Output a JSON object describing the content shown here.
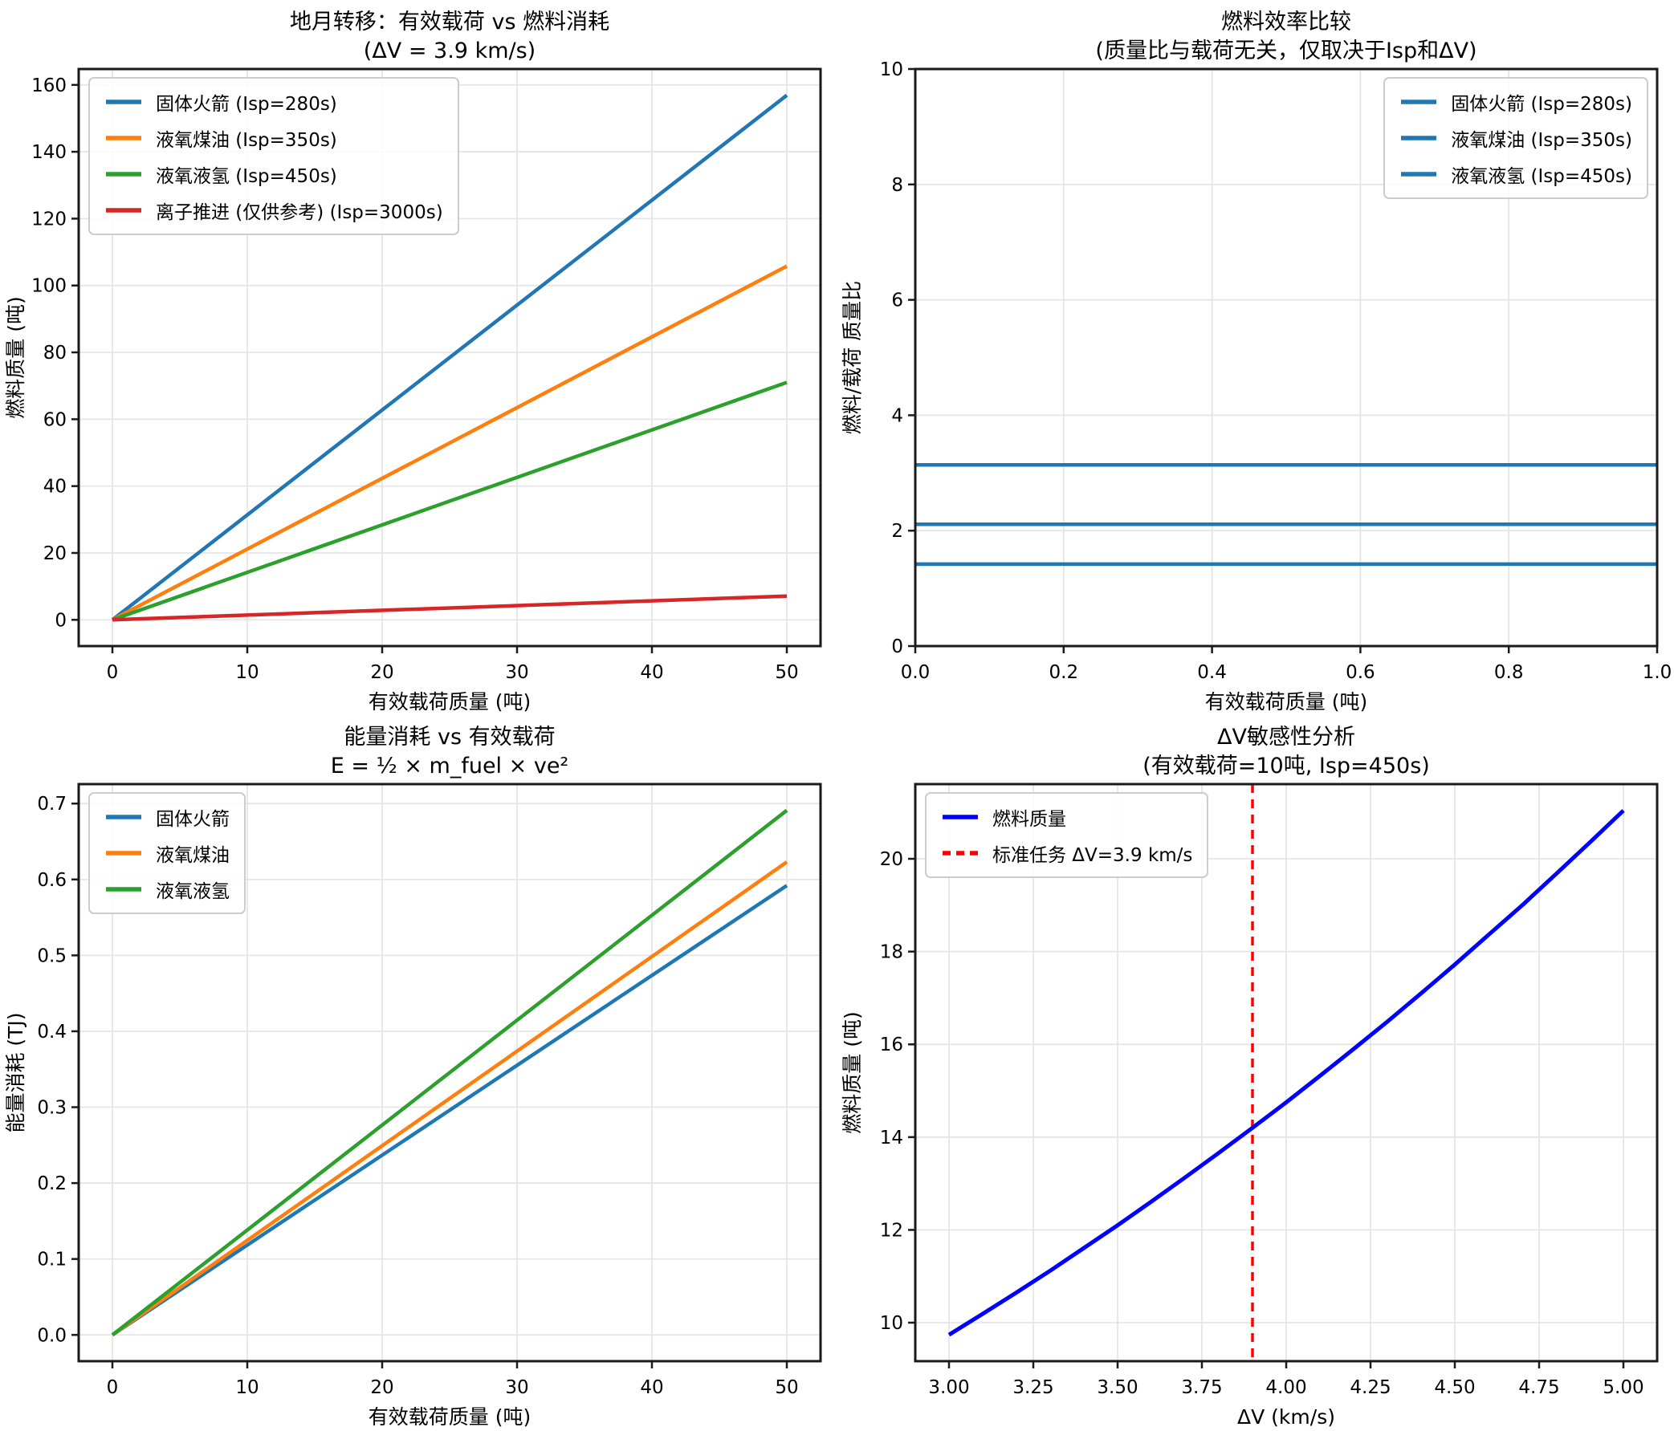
{
  "figure": {
    "background": "#ffffff",
    "grid_color": "#e4e4e4",
    "spine_color": "#1a1a1a",
    "tick_color": "#1a1a1a"
  },
  "chart_data": [
    {
      "id": "payload-vs-fuel",
      "type": "line",
      "title": "地月转移：有效载荷 vs 燃料消耗",
      "subtitle": "(ΔV = 3.9 km/s)",
      "xlabel": "有效载荷质量 (吨)",
      "ylabel": "燃料质量 (吨)",
      "xlim": [
        -2.5,
        52.5
      ],
      "ylim": [
        -7.85,
        164.75
      ],
      "xticks": [
        0,
        10,
        20,
        30,
        40,
        50
      ],
      "xtick_labels": [
        "0",
        "10",
        "20",
        "30",
        "40",
        "50"
      ],
      "yticks": [
        0,
        20,
        40,
        60,
        80,
        100,
        120,
        140,
        160
      ],
      "ytick_labels": [
        "0",
        "20",
        "40",
        "60",
        "80",
        "100",
        "120",
        "140",
        "160"
      ],
      "grid": true,
      "legend_pos": "top-left",
      "series": [
        {
          "name": "固体火箭 (Isp=280s)",
          "color": "#1f77b4",
          "width": 4.5,
          "x": [
            0,
            50
          ],
          "y": [
            0,
            156.9
          ]
        },
        {
          "name": "液氧煤油 (Isp=350s)",
          "color": "#ff7f0e",
          "width": 4.5,
          "x": [
            0,
            50
          ],
          "y": [
            0,
            105.8
          ]
        },
        {
          "name": "液氧液氢 (Isp=450s)",
          "color": "#2ca02c",
          "width": 4.5,
          "x": [
            0,
            50
          ],
          "y": [
            0,
            71.0
          ]
        },
        {
          "name": "离子推进 (仅供参考) (Isp=3000s)",
          "color": "#d62728",
          "width": 4.5,
          "x": [
            0,
            50
          ],
          "y": [
            0,
            7.1
          ]
        }
      ]
    },
    {
      "id": "mass-ratio",
      "type": "line",
      "title": "燃料效率比较",
      "subtitle": "(质量比与载荷无关，仅取决于Isp和ΔV)",
      "xlabel": "有效载荷质量 (吨)",
      "ylabel": "燃料/载荷 质量比",
      "xlim": [
        0,
        1
      ],
      "ylim": [
        0,
        10
      ],
      "xticks": [
        0,
        0.2,
        0.4,
        0.6,
        0.8,
        1.0
      ],
      "xtick_labels": [
        "0.0",
        "0.2",
        "0.4",
        "0.6",
        "0.8",
        "1.0"
      ],
      "yticks": [
        0,
        2,
        4,
        6,
        8,
        10
      ],
      "ytick_labels": [
        "0",
        "2",
        "4",
        "6",
        "8",
        "10"
      ],
      "grid": true,
      "legend_pos": "top-right",
      "series": [
        {
          "name": "固体火箭 (Isp=280s)",
          "color": "#1f77b4",
          "width": 4.5,
          "x": [
            0,
            1
          ],
          "y": [
            3.14,
            3.14
          ]
        },
        {
          "name": "液氧煤油 (Isp=350s)",
          "color": "#1f77b4",
          "width": 4.5,
          "x": [
            0,
            1
          ],
          "y": [
            2.11,
            2.11
          ]
        },
        {
          "name": "液氧液氢 (Isp=450s)",
          "color": "#1f77b4",
          "width": 4.5,
          "x": [
            0,
            1
          ],
          "y": [
            1.42,
            1.42
          ]
        }
      ]
    },
    {
      "id": "energy-vs-payload",
      "type": "line",
      "title": "能量消耗 vs 有效载荷",
      "subtitle": "E = ½ × m_fuel × ve²",
      "xlabel": "有效载荷质量 (吨)",
      "ylabel": "能量消耗 (TJ)",
      "xlim": [
        -2.5,
        52.5
      ],
      "ylim": [
        -0.0346,
        0.7256
      ],
      "xticks": [
        0,
        10,
        20,
        30,
        40,
        50
      ],
      "xtick_labels": [
        "0",
        "10",
        "20",
        "30",
        "40",
        "50"
      ],
      "yticks": [
        0.0,
        0.1,
        0.2,
        0.3,
        0.4,
        0.5,
        0.6,
        0.7
      ],
      "ytick_labels": [
        "0.0",
        "0.1",
        "0.2",
        "0.3",
        "0.4",
        "0.5",
        "0.6",
        "0.7"
      ],
      "grid": true,
      "legend_pos": "top-left",
      "series": [
        {
          "name": "固体火箭",
          "color": "#1f77b4",
          "width": 4.5,
          "x": [
            0,
            50
          ],
          "y": [
            0,
            0.592
          ]
        },
        {
          "name": "液氧煤油",
          "color": "#ff7f0e",
          "width": 4.5,
          "x": [
            0,
            50
          ],
          "y": [
            0,
            0.623
          ]
        },
        {
          "name": "液氧液氢",
          "color": "#2ca02c",
          "width": 4.5,
          "x": [
            0,
            50
          ],
          "y": [
            0,
            0.691
          ]
        }
      ]
    },
    {
      "id": "dv-sensitivity",
      "type": "line",
      "title": "ΔV敏感性分析",
      "subtitle": "(有效载荷=10吨, Isp=450s)",
      "xlabel": "ΔV (km/s)",
      "ylabel": "燃料质量 (吨)",
      "xlim": [
        2.9,
        5.1
      ],
      "ylim": [
        9.17,
        21.61
      ],
      "xticks": [
        3.0,
        3.25,
        3.5,
        3.75,
        4.0,
        4.25,
        4.5,
        4.75,
        5.0
      ],
      "xtick_labels": [
        "3.00",
        "3.25",
        "3.50",
        "3.75",
        "4.00",
        "4.25",
        "4.50",
        "4.75",
        "5.00"
      ],
      "yticks": [
        10,
        12,
        14,
        16,
        18,
        20
      ],
      "ytick_labels": [
        "10",
        "12",
        "14",
        "16",
        "18",
        "20"
      ],
      "grid": true,
      "legend_pos": "top-left",
      "series": [
        {
          "name": "燃料质量",
          "color": "#0000ff",
          "width": 5,
          "x": [
            3.0,
            3.1,
            3.2,
            3.3,
            3.4,
            3.5,
            3.6,
            3.7,
            3.8,
            3.9,
            4.0,
            4.1,
            4.2,
            4.3,
            4.4,
            4.5,
            4.6,
            4.7,
            4.8,
            4.9,
            5.0
          ],
          "y": [
            9.74,
            10.19,
            10.65,
            11.12,
            11.61,
            12.1,
            12.61,
            13.13,
            13.66,
            14.2,
            14.75,
            15.32,
            15.9,
            16.49,
            17.1,
            17.72,
            18.36,
            19.0,
            19.67,
            20.35,
            21.04
          ]
        }
      ],
      "vline": {
        "name": "标准任务 ΔV=3.9 km/s",
        "x": 3.9,
        "color": "#ff0000",
        "width": 3.5,
        "dash": true
      }
    }
  ]
}
